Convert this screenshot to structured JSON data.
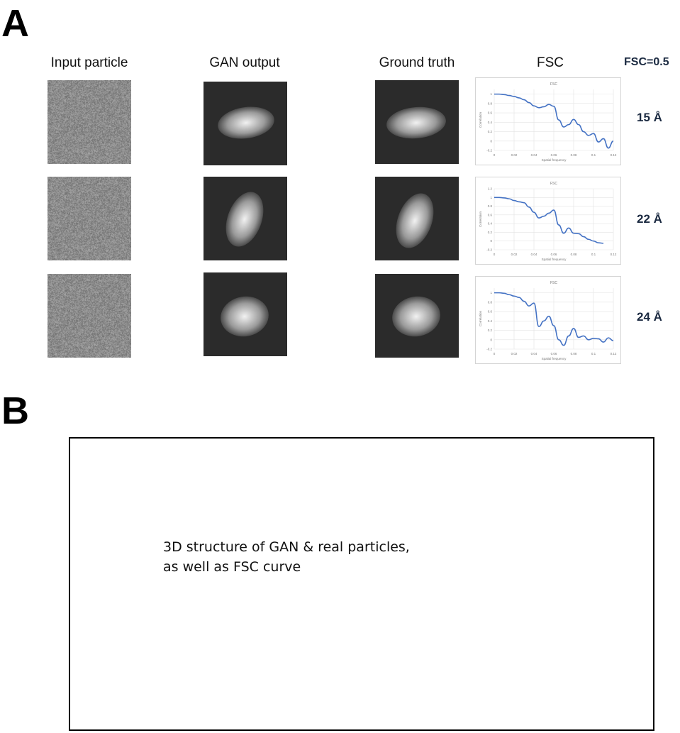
{
  "panel_a": {
    "letter": "A",
    "column_headers": {
      "input": "Input particle",
      "gan": "GAN output",
      "truth": "Ground truth",
      "fsc": "FSC",
      "threshold": "FSC=0.5"
    },
    "rows": [
      {
        "resolution": "15 Å"
      },
      {
        "resolution": "22 Å"
      },
      {
        "resolution": "24 Å"
      }
    ]
  },
  "panel_b": {
    "letter": "B",
    "note_line1": "3D structure of GAN & real particles,",
    "note_line2": "as well as FSC curve"
  },
  "chart_data": [
    {
      "type": "line",
      "title": "FSC",
      "xlabel": "Spatial frequency",
      "ylabel": "Correlation",
      "xlim": [
        0,
        0.12
      ],
      "ylim": [
        -0.2,
        1.1
      ],
      "x_ticks": [
        "0",
        "0.02",
        "0.04",
        "0.06",
        "0.08",
        "0.1",
        "0.12"
      ],
      "y_ticks": [
        "-0.2",
        "0",
        "0.2",
        "0.4",
        "0.6",
        "0.8",
        "1"
      ],
      "grid": true,
      "series": [
        {
          "color": "#4472c4",
          "x": [
            0,
            0.005,
            0.01,
            0.015,
            0.02,
            0.025,
            0.03,
            0.035,
            0.04,
            0.045,
            0.05,
            0.055,
            0.06,
            0.065,
            0.07,
            0.075,
            0.08,
            0.085,
            0.09,
            0.095,
            0.1,
            0.105,
            0.11,
            0.115,
            0.12
          ],
          "y": [
            1,
            1,
            0.99,
            0.97,
            0.95,
            0.92,
            0.88,
            0.82,
            0.75,
            0.71,
            0.73,
            0.78,
            0.74,
            0.45,
            0.3,
            0.35,
            0.46,
            0.35,
            0.2,
            0.12,
            0.16,
            -0.02,
            0.05,
            -0.15,
            0.0
          ]
        }
      ]
    },
    {
      "type": "line",
      "title": "FSC",
      "xlabel": "Spatial frequency",
      "ylabel": "Correlation",
      "xlim": [
        0,
        0.12
      ],
      "ylim": [
        -0.2,
        1.2
      ],
      "x_ticks": [
        "0",
        "0.02",
        "0.04",
        "0.06",
        "0.08",
        "0.1",
        "0.12"
      ],
      "y_ticks": [
        "-0.2",
        "0",
        "0.2",
        "0.4",
        "0.6",
        "0.8",
        "1",
        "1.2"
      ],
      "grid": true,
      "series": [
        {
          "color": "#4472c4",
          "x": [
            0,
            0.005,
            0.01,
            0.015,
            0.02,
            0.025,
            0.03,
            0.035,
            0.04,
            0.045,
            0.05,
            0.055,
            0.06,
            0.065,
            0.07,
            0.075,
            0.08,
            0.085,
            0.09,
            0.095,
            0.1,
            0.105,
            0.11
          ],
          "y": [
            1,
            1,
            0.99,
            0.97,
            0.93,
            0.9,
            0.88,
            0.78,
            0.66,
            0.53,
            0.57,
            0.64,
            0.71,
            0.37,
            0.18,
            0.3,
            0.18,
            0.17,
            0.1,
            0.04,
            0.0,
            -0.04,
            -0.05
          ]
        }
      ]
    },
    {
      "type": "line",
      "title": "FSC",
      "xlabel": "Spatial frequency",
      "ylabel": "Correlation",
      "xlim": [
        0,
        0.12
      ],
      "ylim": [
        -0.2,
        1.1
      ],
      "x_ticks": [
        "0",
        "0.02",
        "0.04",
        "0.06",
        "0.08",
        "0.1",
        "0.12"
      ],
      "y_ticks": [
        "-0.2",
        "0",
        "0.2",
        "0.4",
        "0.6",
        "0.8",
        "1"
      ],
      "grid": true,
      "series": [
        {
          "color": "#4472c4",
          "x": [
            0,
            0.005,
            0.01,
            0.015,
            0.02,
            0.025,
            0.03,
            0.035,
            0.04,
            0.045,
            0.05,
            0.055,
            0.06,
            0.065,
            0.07,
            0.075,
            0.08,
            0.085,
            0.09,
            0.095,
            0.1,
            0.105,
            0.11,
            0.115,
            0.12
          ],
          "y": [
            1,
            1,
            0.99,
            0.96,
            0.93,
            0.9,
            0.82,
            0.72,
            0.78,
            0.28,
            0.4,
            0.5,
            0.3,
            0.0,
            -0.12,
            0.08,
            0.24,
            0.05,
            0.08,
            0.0,
            0.03,
            0.02,
            -0.05,
            0.04,
            -0.02
          ]
        }
      ]
    }
  ],
  "colors": {
    "label_dark_blue": "#1b2a41",
    "curve_blue": "#4472c4",
    "noise_gray": "#8d8d8d",
    "particle_bg": "#2b2b2b"
  }
}
